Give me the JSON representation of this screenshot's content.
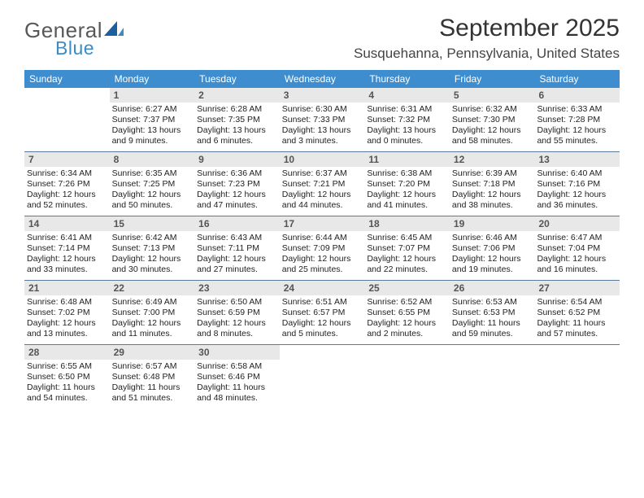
{
  "logo": {
    "text1": "General",
    "text2": "Blue"
  },
  "header": {
    "title": "September 2025",
    "location": "Susquehanna, Pennsylvania, United States",
    "title_color": "#333333",
    "location_color": "#444444"
  },
  "calendar": {
    "header_bg": "#3e8ecf",
    "header_text_color": "#ffffff",
    "daynum_bg": "#e8e8e8",
    "border_color": "#5a7a9a",
    "day_names": [
      "Sunday",
      "Monday",
      "Tuesday",
      "Wednesday",
      "Thursday",
      "Friday",
      "Saturday"
    ],
    "weeks": [
      [
        {
          "n": "",
          "sr": "",
          "ss": "",
          "dl": "",
          "empty": true
        },
        {
          "n": "1",
          "sr": "Sunrise: 6:27 AM",
          "ss": "Sunset: 7:37 PM",
          "dl": "Daylight: 13 hours and 9 minutes."
        },
        {
          "n": "2",
          "sr": "Sunrise: 6:28 AM",
          "ss": "Sunset: 7:35 PM",
          "dl": "Daylight: 13 hours and 6 minutes."
        },
        {
          "n": "3",
          "sr": "Sunrise: 6:30 AM",
          "ss": "Sunset: 7:33 PM",
          "dl": "Daylight: 13 hours and 3 minutes."
        },
        {
          "n": "4",
          "sr": "Sunrise: 6:31 AM",
          "ss": "Sunset: 7:32 PM",
          "dl": "Daylight: 13 hours and 0 minutes."
        },
        {
          "n": "5",
          "sr": "Sunrise: 6:32 AM",
          "ss": "Sunset: 7:30 PM",
          "dl": "Daylight: 12 hours and 58 minutes."
        },
        {
          "n": "6",
          "sr": "Sunrise: 6:33 AM",
          "ss": "Sunset: 7:28 PM",
          "dl": "Daylight: 12 hours and 55 minutes."
        }
      ],
      [
        {
          "n": "7",
          "sr": "Sunrise: 6:34 AM",
          "ss": "Sunset: 7:26 PM",
          "dl": "Daylight: 12 hours and 52 minutes."
        },
        {
          "n": "8",
          "sr": "Sunrise: 6:35 AM",
          "ss": "Sunset: 7:25 PM",
          "dl": "Daylight: 12 hours and 50 minutes."
        },
        {
          "n": "9",
          "sr": "Sunrise: 6:36 AM",
          "ss": "Sunset: 7:23 PM",
          "dl": "Daylight: 12 hours and 47 minutes."
        },
        {
          "n": "10",
          "sr": "Sunrise: 6:37 AM",
          "ss": "Sunset: 7:21 PM",
          "dl": "Daylight: 12 hours and 44 minutes."
        },
        {
          "n": "11",
          "sr": "Sunrise: 6:38 AM",
          "ss": "Sunset: 7:20 PM",
          "dl": "Daylight: 12 hours and 41 minutes."
        },
        {
          "n": "12",
          "sr": "Sunrise: 6:39 AM",
          "ss": "Sunset: 7:18 PM",
          "dl": "Daylight: 12 hours and 38 minutes."
        },
        {
          "n": "13",
          "sr": "Sunrise: 6:40 AM",
          "ss": "Sunset: 7:16 PM",
          "dl": "Daylight: 12 hours and 36 minutes."
        }
      ],
      [
        {
          "n": "14",
          "sr": "Sunrise: 6:41 AM",
          "ss": "Sunset: 7:14 PM",
          "dl": "Daylight: 12 hours and 33 minutes."
        },
        {
          "n": "15",
          "sr": "Sunrise: 6:42 AM",
          "ss": "Sunset: 7:13 PM",
          "dl": "Daylight: 12 hours and 30 minutes."
        },
        {
          "n": "16",
          "sr": "Sunrise: 6:43 AM",
          "ss": "Sunset: 7:11 PM",
          "dl": "Daylight: 12 hours and 27 minutes."
        },
        {
          "n": "17",
          "sr": "Sunrise: 6:44 AM",
          "ss": "Sunset: 7:09 PM",
          "dl": "Daylight: 12 hours and 25 minutes."
        },
        {
          "n": "18",
          "sr": "Sunrise: 6:45 AM",
          "ss": "Sunset: 7:07 PM",
          "dl": "Daylight: 12 hours and 22 minutes."
        },
        {
          "n": "19",
          "sr": "Sunrise: 6:46 AM",
          "ss": "Sunset: 7:06 PM",
          "dl": "Daylight: 12 hours and 19 minutes."
        },
        {
          "n": "20",
          "sr": "Sunrise: 6:47 AM",
          "ss": "Sunset: 7:04 PM",
          "dl": "Daylight: 12 hours and 16 minutes."
        }
      ],
      [
        {
          "n": "21",
          "sr": "Sunrise: 6:48 AM",
          "ss": "Sunset: 7:02 PM",
          "dl": "Daylight: 12 hours and 13 minutes."
        },
        {
          "n": "22",
          "sr": "Sunrise: 6:49 AM",
          "ss": "Sunset: 7:00 PM",
          "dl": "Daylight: 12 hours and 11 minutes."
        },
        {
          "n": "23",
          "sr": "Sunrise: 6:50 AM",
          "ss": "Sunset: 6:59 PM",
          "dl": "Daylight: 12 hours and 8 minutes."
        },
        {
          "n": "24",
          "sr": "Sunrise: 6:51 AM",
          "ss": "Sunset: 6:57 PM",
          "dl": "Daylight: 12 hours and 5 minutes."
        },
        {
          "n": "25",
          "sr": "Sunrise: 6:52 AM",
          "ss": "Sunset: 6:55 PM",
          "dl": "Daylight: 12 hours and 2 minutes."
        },
        {
          "n": "26",
          "sr": "Sunrise: 6:53 AM",
          "ss": "Sunset: 6:53 PM",
          "dl": "Daylight: 11 hours and 59 minutes."
        },
        {
          "n": "27",
          "sr": "Sunrise: 6:54 AM",
          "ss": "Sunset: 6:52 PM",
          "dl": "Daylight: 11 hours and 57 minutes."
        }
      ],
      [
        {
          "n": "28",
          "sr": "Sunrise: 6:55 AM",
          "ss": "Sunset: 6:50 PM",
          "dl": "Daylight: 11 hours and 54 minutes."
        },
        {
          "n": "29",
          "sr": "Sunrise: 6:57 AM",
          "ss": "Sunset: 6:48 PM",
          "dl": "Daylight: 11 hours and 51 minutes."
        },
        {
          "n": "30",
          "sr": "Sunrise: 6:58 AM",
          "ss": "Sunset: 6:46 PM",
          "dl": "Daylight: 11 hours and 48 minutes."
        },
        {
          "n": "",
          "sr": "",
          "ss": "",
          "dl": "",
          "empty": true
        },
        {
          "n": "",
          "sr": "",
          "ss": "",
          "dl": "",
          "empty": true
        },
        {
          "n": "",
          "sr": "",
          "ss": "",
          "dl": "",
          "empty": true
        },
        {
          "n": "",
          "sr": "",
          "ss": "",
          "dl": "",
          "empty": true
        }
      ]
    ]
  }
}
